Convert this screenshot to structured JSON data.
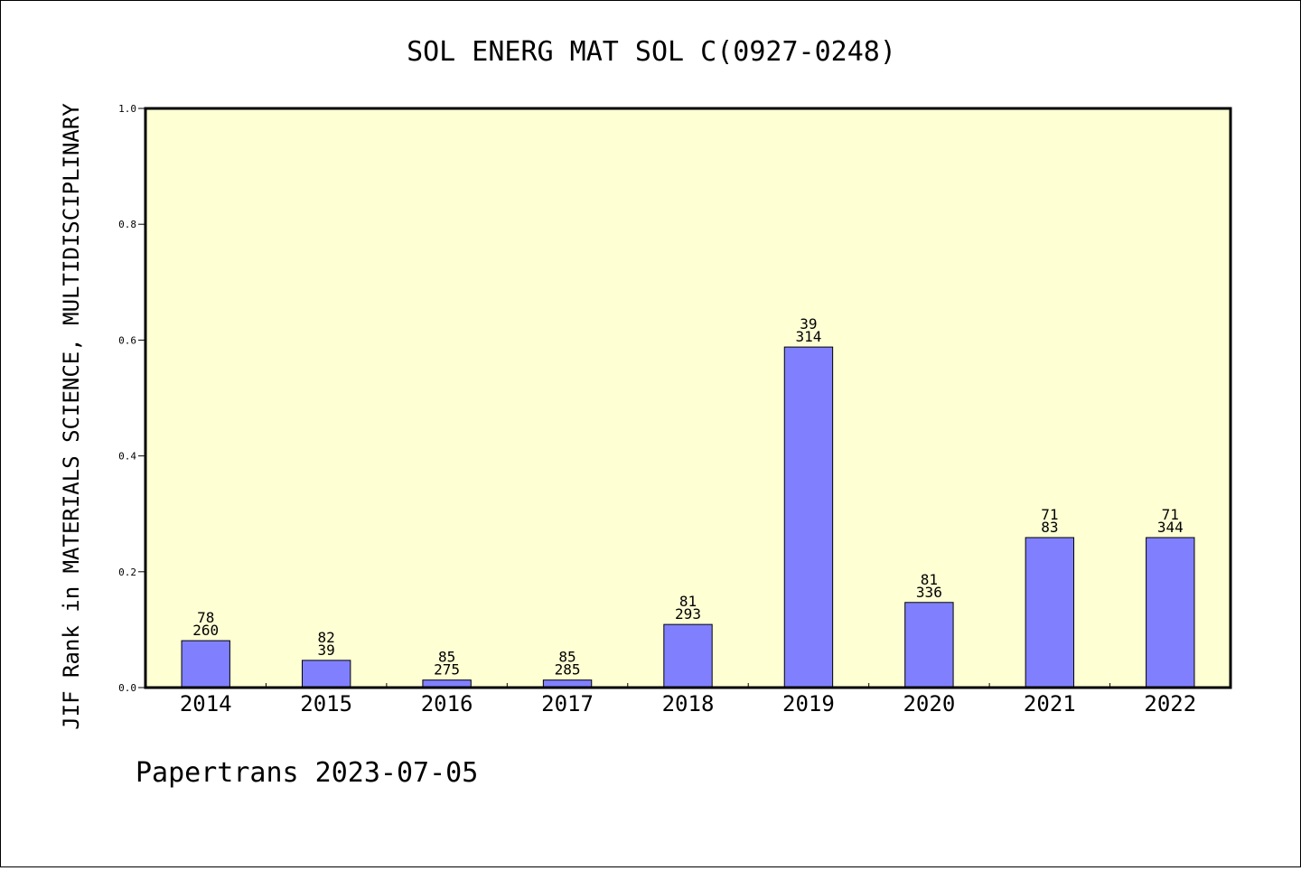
{
  "chart_data": {
    "type": "bar",
    "title": "SOL ENERG MAT SOL C(0927-0248)",
    "ylabel": "JIF Rank in MATERIALS SCIENCE, MULTIDISCIPLINARY",
    "xlabel": "",
    "ylim": [
      0,
      1.0
    ],
    "yticks": [
      "0.0",
      "0.2",
      "0.4",
      "0.6",
      "0.8",
      "1.0"
    ],
    "categories": [
      "2014",
      "2015",
      "2016",
      "2017",
      "2018",
      "2019",
      "2020",
      "2021",
      "2022"
    ],
    "values": [
      0.081,
      0.047,
      0.013,
      0.013,
      0.109,
      0.588,
      0.147,
      0.259,
      0.259
    ],
    "labels_top": [
      "78",
      "82",
      "85",
      "85",
      "81",
      "39",
      "81",
      "71",
      "71"
    ],
    "labels_bottom": [
      "260",
      "39",
      "275",
      "285",
      "293",
      "314",
      "336",
      "83",
      "344"
    ],
    "grid": false,
    "colors": {
      "plot_background": "#FFFFD4",
      "bar_fill": "#8080FF",
      "bar_stroke": "#000000",
      "axis": "#000000"
    }
  },
  "footer": "Papertrans 2023-07-05"
}
